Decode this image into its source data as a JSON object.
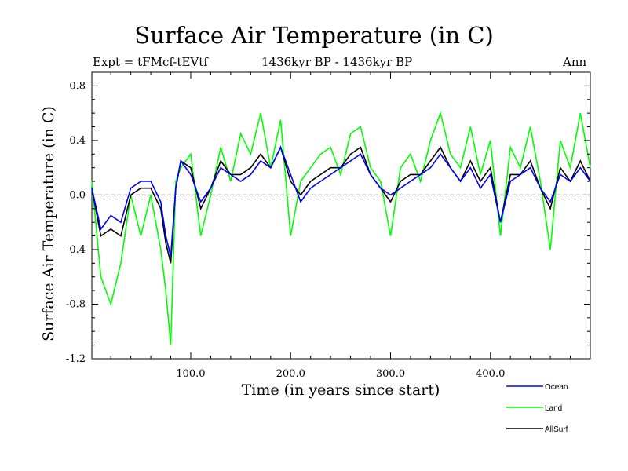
{
  "chart_data": {
    "type": "line",
    "title": "Surface Air Temperature (in C)",
    "experiment": "Expt = tFMcf-tEVtf",
    "period": "1436kyr BP - 1436kyr BP",
    "season": "Ann",
    "xlabel": "Time (in years since start)",
    "ylabel": "Surface Air Temperature (in C)",
    "xlim": [
      1,
      500
    ],
    "ylim": [
      -1.2,
      0.9
    ],
    "xticks": [
      100,
      200,
      300,
      400
    ],
    "xtick_labels": [
      "100.0",
      "200.0",
      "300.0",
      "400.0"
    ],
    "yticks": [
      0.8,
      0.4,
      0.0,
      -0.4,
      -0.8,
      -1.2
    ],
    "ytick_labels": [
      "0.8",
      "0.4",
      "0.0",
      "-0.4",
      "-0.8",
      "-1.2"
    ],
    "zero_line": true,
    "series": [
      {
        "name": "Ocean",
        "color": "#0000ff",
        "x": [
          1,
          10,
          20,
          30,
          40,
          50,
          60,
          70,
          75,
          80,
          85,
          90,
          100,
          110,
          120,
          130,
          140,
          150,
          160,
          170,
          180,
          190,
          200,
          210,
          220,
          230,
          240,
          250,
          260,
          270,
          280,
          290,
          300,
          310,
          320,
          330,
          340,
          350,
          360,
          370,
          380,
          390,
          400,
          410,
          420,
          430,
          440,
          450,
          460,
          470,
          480,
          490,
          500
        ],
        "values": [
          0.05,
          -0.25,
          -0.15,
          -0.2,
          0.05,
          0.1,
          0.1,
          -0.05,
          -0.3,
          -0.45,
          0.05,
          0.25,
          0.15,
          -0.05,
          0.05,
          0.2,
          0.15,
          0.1,
          0.15,
          0.25,
          0.2,
          0.35,
          0.15,
          -0.05,
          0.05,
          0.1,
          0.15,
          0.2,
          0.25,
          0.3,
          0.15,
          0.05,
          0.0,
          0.05,
          0.1,
          0.15,
          0.2,
          0.3,
          0.2,
          0.1,
          0.2,
          0.05,
          0.15,
          -0.2,
          0.1,
          0.15,
          0.2,
          0.05,
          -0.05,
          0.15,
          0.1,
          0.2,
          0.1
        ]
      },
      {
        "name": "Land",
        "color": "#00ff00",
        "x": [
          1,
          10,
          20,
          30,
          40,
          50,
          60,
          70,
          75,
          80,
          85,
          90,
          100,
          110,
          120,
          130,
          140,
          150,
          160,
          170,
          180,
          190,
          200,
          210,
          220,
          230,
          240,
          250,
          260,
          270,
          280,
          290,
          300,
          310,
          320,
          330,
          340,
          350,
          360,
          370,
          380,
          390,
          400,
          410,
          420,
          430,
          440,
          450,
          460,
          470,
          480,
          490,
          500
        ],
        "values": [
          0.1,
          -0.6,
          -0.8,
          -0.5,
          0.0,
          -0.3,
          0.0,
          -0.4,
          -0.7,
          -1.1,
          0.1,
          0.2,
          0.3,
          -0.3,
          0.0,
          0.35,
          0.1,
          0.45,
          0.3,
          0.6,
          0.2,
          0.55,
          -0.3,
          0.1,
          0.2,
          0.3,
          0.35,
          0.15,
          0.45,
          0.5,
          0.2,
          0.1,
          -0.3,
          0.2,
          0.3,
          0.1,
          0.4,
          0.6,
          0.3,
          0.2,
          0.5,
          0.15,
          0.4,
          -0.3,
          0.35,
          0.2,
          0.5,
          0.1,
          -0.4,
          0.4,
          0.2,
          0.6,
          0.2
        ]
      },
      {
        "name": "AllSurf",
        "color": "#000000",
        "x": [
          1,
          10,
          20,
          30,
          40,
          50,
          60,
          70,
          75,
          80,
          85,
          90,
          100,
          110,
          120,
          130,
          140,
          150,
          160,
          170,
          180,
          190,
          200,
          210,
          220,
          230,
          240,
          250,
          260,
          270,
          280,
          290,
          300,
          310,
          320,
          330,
          340,
          350,
          360,
          370,
          380,
          390,
          400,
          410,
          420,
          430,
          440,
          450,
          460,
          470,
          480,
          490,
          500
        ],
        "values": [
          0.05,
          -0.3,
          -0.25,
          -0.3,
          0.0,
          0.05,
          0.05,
          -0.1,
          -0.35,
          -0.5,
          0.05,
          0.25,
          0.2,
          -0.1,
          0.05,
          0.25,
          0.15,
          0.15,
          0.2,
          0.3,
          0.2,
          0.35,
          0.1,
          0.0,
          0.1,
          0.15,
          0.2,
          0.2,
          0.3,
          0.35,
          0.15,
          0.05,
          -0.05,
          0.1,
          0.15,
          0.15,
          0.25,
          0.35,
          0.2,
          0.1,
          0.25,
          0.1,
          0.2,
          -0.2,
          0.15,
          0.15,
          0.25,
          0.05,
          -0.1,
          0.2,
          0.1,
          0.25,
          0.1
        ]
      }
    ]
  }
}
